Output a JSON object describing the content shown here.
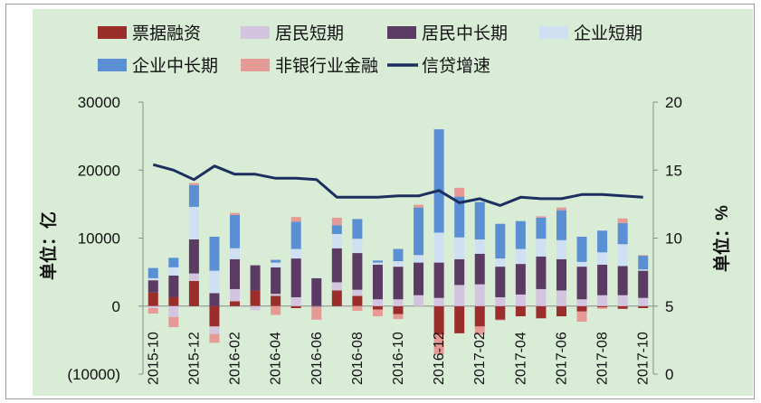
{
  "chart_data": {
    "type": "bar",
    "subtype": "stacked-bar-with-line",
    "categories": [
      "2015-10",
      "2015-11",
      "2015-12",
      "2016-01",
      "2016-02",
      "2016-03",
      "2016-04",
      "2016-05",
      "2016-06",
      "2016-07",
      "2016-08",
      "2016-09",
      "2016-10",
      "2016-11",
      "2016-12",
      "2017-01",
      "2017-02",
      "2017-03",
      "2017-04",
      "2017-05",
      "2017-06",
      "2017-07",
      "2017-08",
      "2017-09",
      "2017-10"
    ],
    "x_tick_labels": [
      "2015-10",
      "2015-12",
      "2016-02",
      "2016-04",
      "2016-06",
      "2016-08",
      "2016-10",
      "2016-12",
      "2017-02",
      "2017-04",
      "2017-06",
      "2017-08",
      "2017-10"
    ],
    "left_axis": {
      "label": "单位：亿",
      "range": [
        -10000,
        30000
      ],
      "ticks": [
        "(10000)",
        "0",
        "10000",
        "20000",
        "30000"
      ]
    },
    "right_axis": {
      "label": "单位：%",
      "range": [
        0,
        20
      ],
      "ticks": [
        "0",
        "5",
        "10",
        "15",
        "20"
      ]
    },
    "legend": {
      "position": "top"
    },
    "series": [
      {
        "name": "票据融资",
        "color": "#9b2d2a",
        "values": [
          2000,
          1300,
          3700,
          -3000,
          700,
          2300,
          1500,
          -300,
          100,
          2300,
          1500,
          -500,
          -1200,
          0,
          -4200,
          -4000,
          -3000,
          -2000,
          -1500,
          -1800,
          -1500,
          -800,
          -200,
          -400,
          -300
        ]
      },
      {
        "name": "居民短期",
        "color": "#d3c5df",
        "values": [
          -300,
          -1600,
          1100,
          -1100,
          1800,
          -600,
          300,
          1300,
          0,
          1200,
          900,
          1000,
          1000,
          1600,
          1200,
          3100,
          3200,
          1300,
          1700,
          2500,
          2300,
          1000,
          1600,
          1600,
          1200
        ]
      },
      {
        "name": "居民中长期",
        "color": "#5b3a64",
        "values": [
          1800,
          3200,
          5000,
          1900,
          4400,
          3700,
          3900,
          5700,
          4000,
          5000,
          5400,
          5100,
          4800,
          4800,
          5200,
          3800,
          4500,
          4500,
          4500,
          4800,
          4600,
          4800,
          4500,
          4300,
          4000
        ]
      },
      {
        "name": "企业短期",
        "color": "#cfe0f3",
        "values": [
          300,
          1200,
          4800,
          3300,
          1600,
          0,
          700,
          1400,
          100,
          2100,
          2100,
          300,
          800,
          1100,
          4400,
          3200,
          2100,
          1200,
          2200,
          2600,
          2800,
          700,
          1800,
          3200,
          200
        ]
      },
      {
        "name": "企业中长期",
        "color": "#5b8fd4",
        "values": [
          1500,
          1400,
          3200,
          5000,
          4900,
          0,
          400,
          4000,
          -100,
          1300,
          2900,
          300,
          1800,
          7000,
          15200,
          6000,
          5500,
          5100,
          4100,
          3100,
          4400,
          3700,
          3200,
          3100,
          2000
        ]
      },
      {
        "name": "非银行业金融",
        "color": "#e59a96",
        "values": [
          -800,
          -1500,
          300,
          -1300,
          300,
          0,
          -1300,
          700,
          -1900,
          1100,
          -700,
          -1000,
          -700,
          400,
          -2900,
          1300,
          -1200,
          -100,
          0,
          200,
          400,
          -1500,
          -200,
          700,
          100
        ]
      },
      {
        "name": "信贷增速",
        "type": "line",
        "axis": "right",
        "color": "#1b2f5e",
        "values": [
          15.4,
          15.0,
          14.3,
          15.3,
          14.7,
          14.7,
          14.4,
          14.4,
          14.3,
          13.0,
          13.0,
          13.0,
          13.1,
          13.1,
          13.5,
          12.6,
          12.9,
          12.4,
          13.0,
          12.9,
          12.9,
          13.2,
          13.2,
          13.1,
          13.0
        ]
      }
    ]
  }
}
